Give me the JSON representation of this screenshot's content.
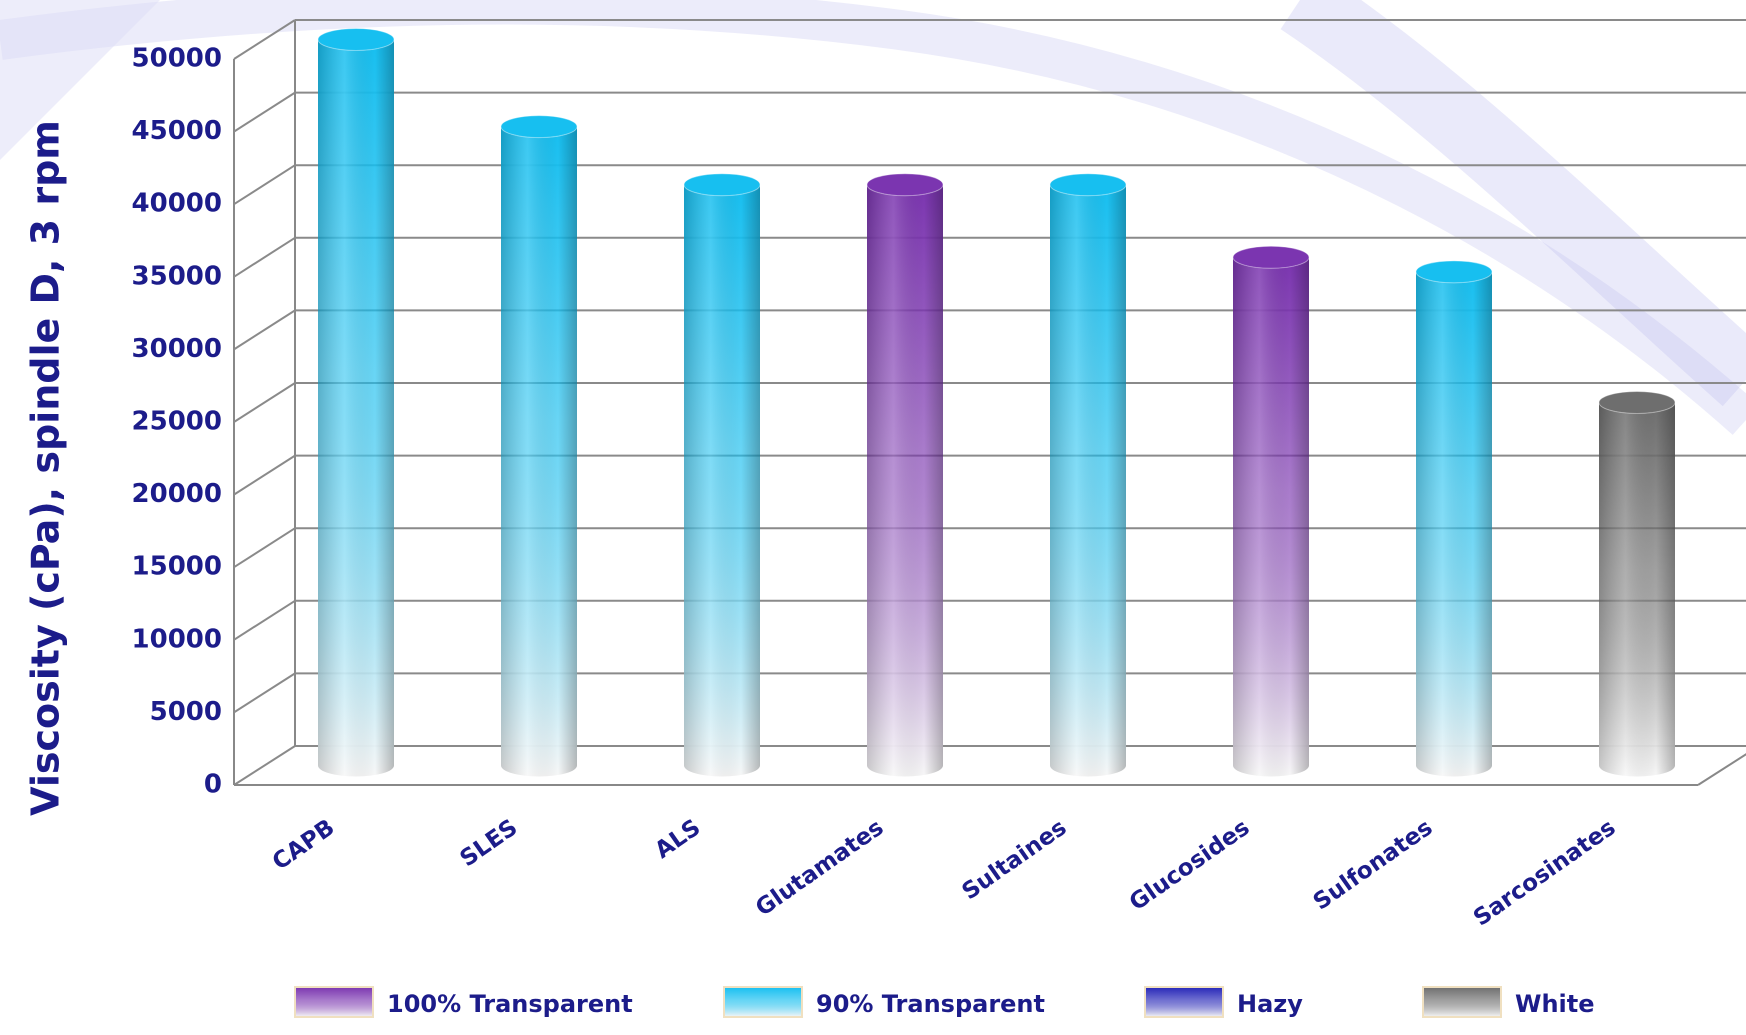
{
  "chart_data": {
    "type": "bar",
    "stacked": true,
    "y_label": "Viscosity (cPa), spindle D, 3 rpm",
    "categories": [
      "CAPB",
      "SLES",
      "ALS",
      "Glutamates",
      "Sultaines",
      "Glucosides",
      "Sulfonates",
      "Sarcosinates"
    ],
    "series": [
      {
        "name": "100% Transparent",
        "color": "#7b35b0",
        "values": [
          null,
          null,
          null,
          40000,
          null,
          35000,
          null,
          null
        ]
      },
      {
        "name": "90% Transparent",
        "color": "#17bff0",
        "values": [
          50000,
          44000,
          40000,
          null,
          40000,
          null,
          34000,
          null
        ]
      },
      {
        "name": "Hazy",
        "color": "#2626b8",
        "values": [
          null,
          null,
          null,
          null,
          null,
          null,
          null,
          null
        ]
      },
      {
        "name": "White",
        "color": "#6e6e6e",
        "values": [
          null,
          null,
          null,
          null,
          null,
          null,
          null,
          25000
        ]
      }
    ],
    "ylim": [
      0,
      50000
    ],
    "yticks": [
      0,
      5000,
      10000,
      15000,
      20000,
      25000,
      30000,
      35000,
      40000,
      45000,
      50000
    ],
    "grid": true,
    "legend": "bottom"
  }
}
